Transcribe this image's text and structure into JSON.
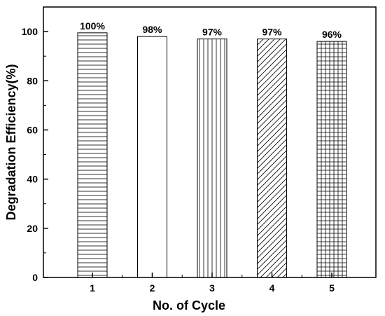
{
  "chart_data": {
    "type": "bar",
    "x_label": "No. of Cycle",
    "y_label": "Degradation Efficiency(%)",
    "categories": [
      "1",
      "2",
      "3",
      "4",
      "5"
    ],
    "values": [
      99.5,
      98,
      97,
      97,
      96
    ],
    "value_labels": [
      "100%",
      "98%",
      "97%",
      "97%",
      "96%"
    ],
    "color": "#000000",
    "hatches": [
      "-",
      "\\",
      "|",
      "/",
      "+"
    ],
    "ylim": [
      0,
      110
    ],
    "yticks": [
      0,
      20,
      40,
      60,
      80,
      100
    ]
  }
}
